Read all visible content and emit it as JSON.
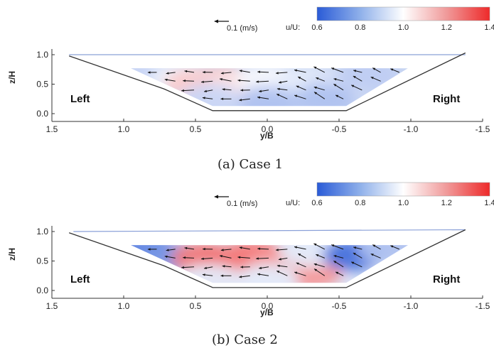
{
  "chart_data": [
    {
      "type": "heatmap",
      "title": "",
      "caption": "(a) Case 1",
      "xlabel": "y/B",
      "ylabel": "z/H",
      "xlim": [
        1.5,
        -1.5
      ],
      "ylim": [
        0.0,
        1.0
      ],
      "xticks": [
        "1.5",
        "1.0",
        "0.5",
        "0.0",
        "-0.5",
        "-1.0",
        "-1.5"
      ],
      "yticks": [
        "0.0",
        "0.5",
        "1.0"
      ],
      "annotations": [
        "Left",
        "Right"
      ],
      "colorbar": {
        "label": "u/U:",
        "min": 0.6,
        "max": 1.4,
        "ticks": [
          "0.6",
          "0.8",
          "1.0",
          "1.2",
          "1.4"
        ],
        "colors": [
          "#2a5bd7",
          "#ffffff",
          "#ee2a2a"
        ]
      },
      "vector_scale": {
        "label": "0.1 (m/s)",
        "value": 0.1
      },
      "water_surface": [
        [
          1.38,
          1.0
        ],
        [
          -1.38,
          1.0
        ]
      ],
      "channel_bed": [
        [
          1.38,
          0.98
        ],
        [
          0.72,
          0.42
        ],
        [
          0.38,
          0.05
        ],
        [
          -0.55,
          0.05
        ],
        [
          -1.38,
          1.03
        ]
      ],
      "measurement_region": [
        [
          0.95,
          0.77
        ],
        [
          -0.98,
          0.77
        ],
        [
          -0.55,
          0.13
        ],
        [
          0.38,
          0.13
        ]
      ],
      "field": [
        {
          "y": 0.8,
          "z": 0.7,
          "u": 0.9
        },
        {
          "y": 0.6,
          "z": 0.6,
          "u": 0.97
        },
        {
          "y": 0.5,
          "z": 0.5,
          "u": 1.1
        },
        {
          "y": 0.3,
          "z": 0.55,
          "u": 1.1
        },
        {
          "y": 0.2,
          "z": 0.45,
          "u": 1.05
        },
        {
          "y": 0.0,
          "z": 0.6,
          "u": 0.98
        },
        {
          "y": -0.3,
          "z": 0.55,
          "u": 0.95
        },
        {
          "y": -0.5,
          "z": 0.5,
          "u": 0.93
        },
        {
          "y": -0.7,
          "z": 0.65,
          "u": 0.88
        },
        {
          "y": 0.0,
          "z": 0.2,
          "u": 0.85
        },
        {
          "y": -0.4,
          "z": 0.25,
          "u": 0.85
        },
        {
          "y": 0.4,
          "z": 0.25,
          "u": 0.9
        }
      ]
    },
    {
      "type": "heatmap",
      "title": "",
      "caption": "(b) Case 2",
      "xlabel": "y/B",
      "ylabel": "z/H",
      "xlim": [
        1.5,
        -1.5
      ],
      "ylim": [
        0.0,
        1.0
      ],
      "xticks": [
        "1.5",
        "1.0",
        "0.5",
        "0.0",
        "-0.5",
        "-1.0",
        "-1.5"
      ],
      "yticks": [
        "0.0",
        "0.5",
        "1.0"
      ],
      "annotations": [
        "Left",
        "Right"
      ],
      "colorbar": {
        "label": "u/U:",
        "min": 0.6,
        "max": 1.4,
        "ticks": [
          "0.6",
          "0.8",
          "1.0",
          "1.2",
          "1.4"
        ],
        "colors": [
          "#2a5bd7",
          "#ffffff",
          "#ee2a2a"
        ]
      },
      "vector_scale": {
        "label": "0.1 (m/s)",
        "value": 0.1
      },
      "water_surface": [
        [
          1.35,
          1.0
        ],
        [
          -1.38,
          1.03
        ]
      ],
      "channel_bed": [
        [
          1.38,
          0.98
        ],
        [
          0.72,
          0.42
        ],
        [
          0.38,
          0.05
        ],
        [
          -0.55,
          0.05
        ],
        [
          -1.38,
          1.03
        ]
      ],
      "measurement_region": [
        [
          0.95,
          0.77
        ],
        [
          -0.98,
          0.77
        ],
        [
          -0.55,
          0.13
        ],
        [
          0.38,
          0.13
        ]
      ],
      "field": [
        {
          "y": 0.85,
          "z": 0.7,
          "u": 0.7
        },
        {
          "y": 0.65,
          "z": 0.55,
          "u": 0.75
        },
        {
          "y": 0.45,
          "z": 0.55,
          "u": 1.25
        },
        {
          "y": 0.3,
          "z": 0.4,
          "u": 1.3
        },
        {
          "y": 0.1,
          "z": 0.6,
          "u": 1.25
        },
        {
          "y": -0.1,
          "z": 0.45,
          "u": 1.2
        },
        {
          "y": -0.3,
          "z": 0.3,
          "u": 1.2
        },
        {
          "y": -0.3,
          "z": 0.65,
          "u": 0.95
        },
        {
          "y": -0.6,
          "z": 0.6,
          "u": 0.65
        },
        {
          "y": -0.85,
          "z": 0.7,
          "u": 0.85
        },
        {
          "y": 0.0,
          "z": 0.2,
          "u": 0.95
        },
        {
          "y": 0.4,
          "z": 0.2,
          "u": 0.95
        }
      ]
    }
  ]
}
